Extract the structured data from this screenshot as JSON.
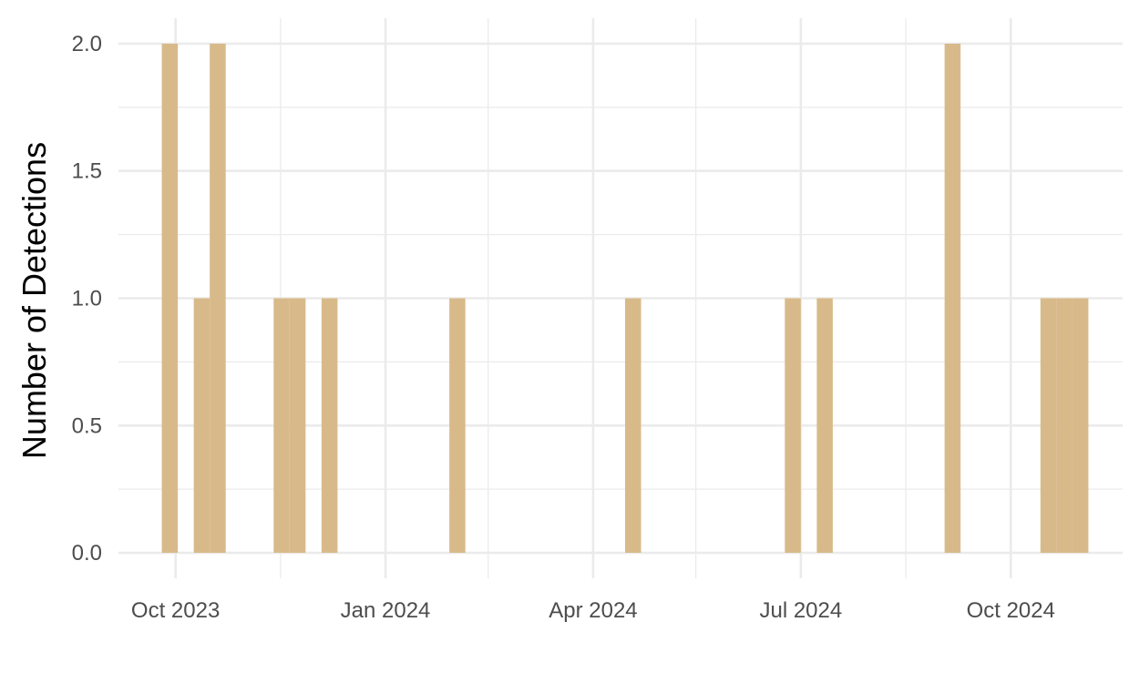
{
  "chart_data": {
    "type": "bar",
    "title": "",
    "xlabel": "",
    "ylabel": "Number of Detections",
    "bin_width_days": 7,
    "bins": [
      {
        "start": "2023-09-25",
        "count": 2
      },
      {
        "start": "2023-10-09",
        "count": 1
      },
      {
        "start": "2023-10-16",
        "count": 2
      },
      {
        "start": "2023-11-13",
        "count": 1
      },
      {
        "start": "2023-11-20",
        "count": 1
      },
      {
        "start": "2023-12-04",
        "count": 1
      },
      {
        "start": "2024-01-29",
        "count": 1
      },
      {
        "start": "2024-04-15",
        "count": 1
      },
      {
        "start": "2024-06-24",
        "count": 1
      },
      {
        "start": "2024-07-08",
        "count": 1
      },
      {
        "start": "2024-09-02",
        "count": 2
      },
      {
        "start": "2024-10-14",
        "count": 1
      },
      {
        "start": "2024-10-21",
        "count": 1
      },
      {
        "start": "2024-10-28",
        "count": 1
      }
    ],
    "x_ticks": [
      {
        "date": "2023-10-01",
        "label": "Oct 2023"
      },
      {
        "date": "2024-01-01",
        "label": "Jan 2024"
      },
      {
        "date": "2024-04-01",
        "label": "Apr 2024"
      },
      {
        "date": "2024-07-01",
        "label": "Jul 2024"
      },
      {
        "date": "2024-10-01",
        "label": "Oct 2024"
      }
    ],
    "x_minor_ticks": [
      "2023-11-16",
      "2024-02-15",
      "2024-05-16",
      "2024-08-16"
    ],
    "y_ticks": [
      {
        "value": 0,
        "label": "0.0"
      },
      {
        "value": 0.5,
        "label": "0.5"
      },
      {
        "value": 1,
        "label": "1.0"
      },
      {
        "value": 1.5,
        "label": "1.5"
      },
      {
        "value": 2,
        "label": "2.0"
      }
    ],
    "y_minor_ticks": [
      0.25,
      0.75,
      1.25,
      1.75
    ],
    "xlim": [
      "2023-09-06",
      "2024-11-19"
    ],
    "ylim": [
      -0.1,
      2.1
    ],
    "bar_color": "#D8BA8A",
    "grid_color": "#EBEBEB",
    "grid": true
  }
}
